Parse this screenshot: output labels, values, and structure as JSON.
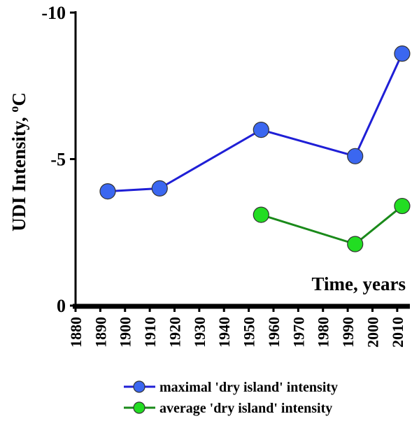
{
  "chart_data": {
    "type": "line",
    "title": "",
    "xlabel": "Time, years",
    "ylabel": "UDI Intensity, ",
    "ylabel_superscript": "o",
    "ylabel_unit": "C",
    "xlim": [
      1880,
      2014
    ],
    "ylim": [
      0,
      -10
    ],
    "y_inverted": true,
    "x_ticks": [
      1880,
      1890,
      1900,
      1910,
      1920,
      1930,
      1940,
      1950,
      1960,
      1970,
      1980,
      1990,
      2000,
      2010
    ],
    "x_tick_labels": [
      "1880",
      "1890",
      "1900",
      "1910",
      "1920",
      "1930",
      "1940",
      "1950",
      "1960",
      "1970",
      "1980",
      "1990",
      "2000",
      "2010"
    ],
    "y_ticks": [
      -10,
      -5,
      0
    ],
    "y_tick_labels": [
      "-10",
      "-5",
      "0"
    ],
    "grid": false,
    "legend_position": "bottom",
    "series": [
      {
        "name": "maximal 'dry island' intensity",
        "color": "#1f1fd6",
        "marker_color": "#3b67f0",
        "x": [
          1893,
          1914,
          1955,
          1993,
          2012
        ],
        "y": [
          -3.9,
          -4.0,
          -6.0,
          -5.1,
          -8.6
        ]
      },
      {
        "name": "average 'dry island' intensity",
        "color": "#1a8a1a",
        "marker_color": "#22dd22",
        "x": [
          1955,
          1993,
          2012
        ],
        "y": [
          -3.1,
          -2.1,
          -3.4
        ]
      }
    ]
  }
}
